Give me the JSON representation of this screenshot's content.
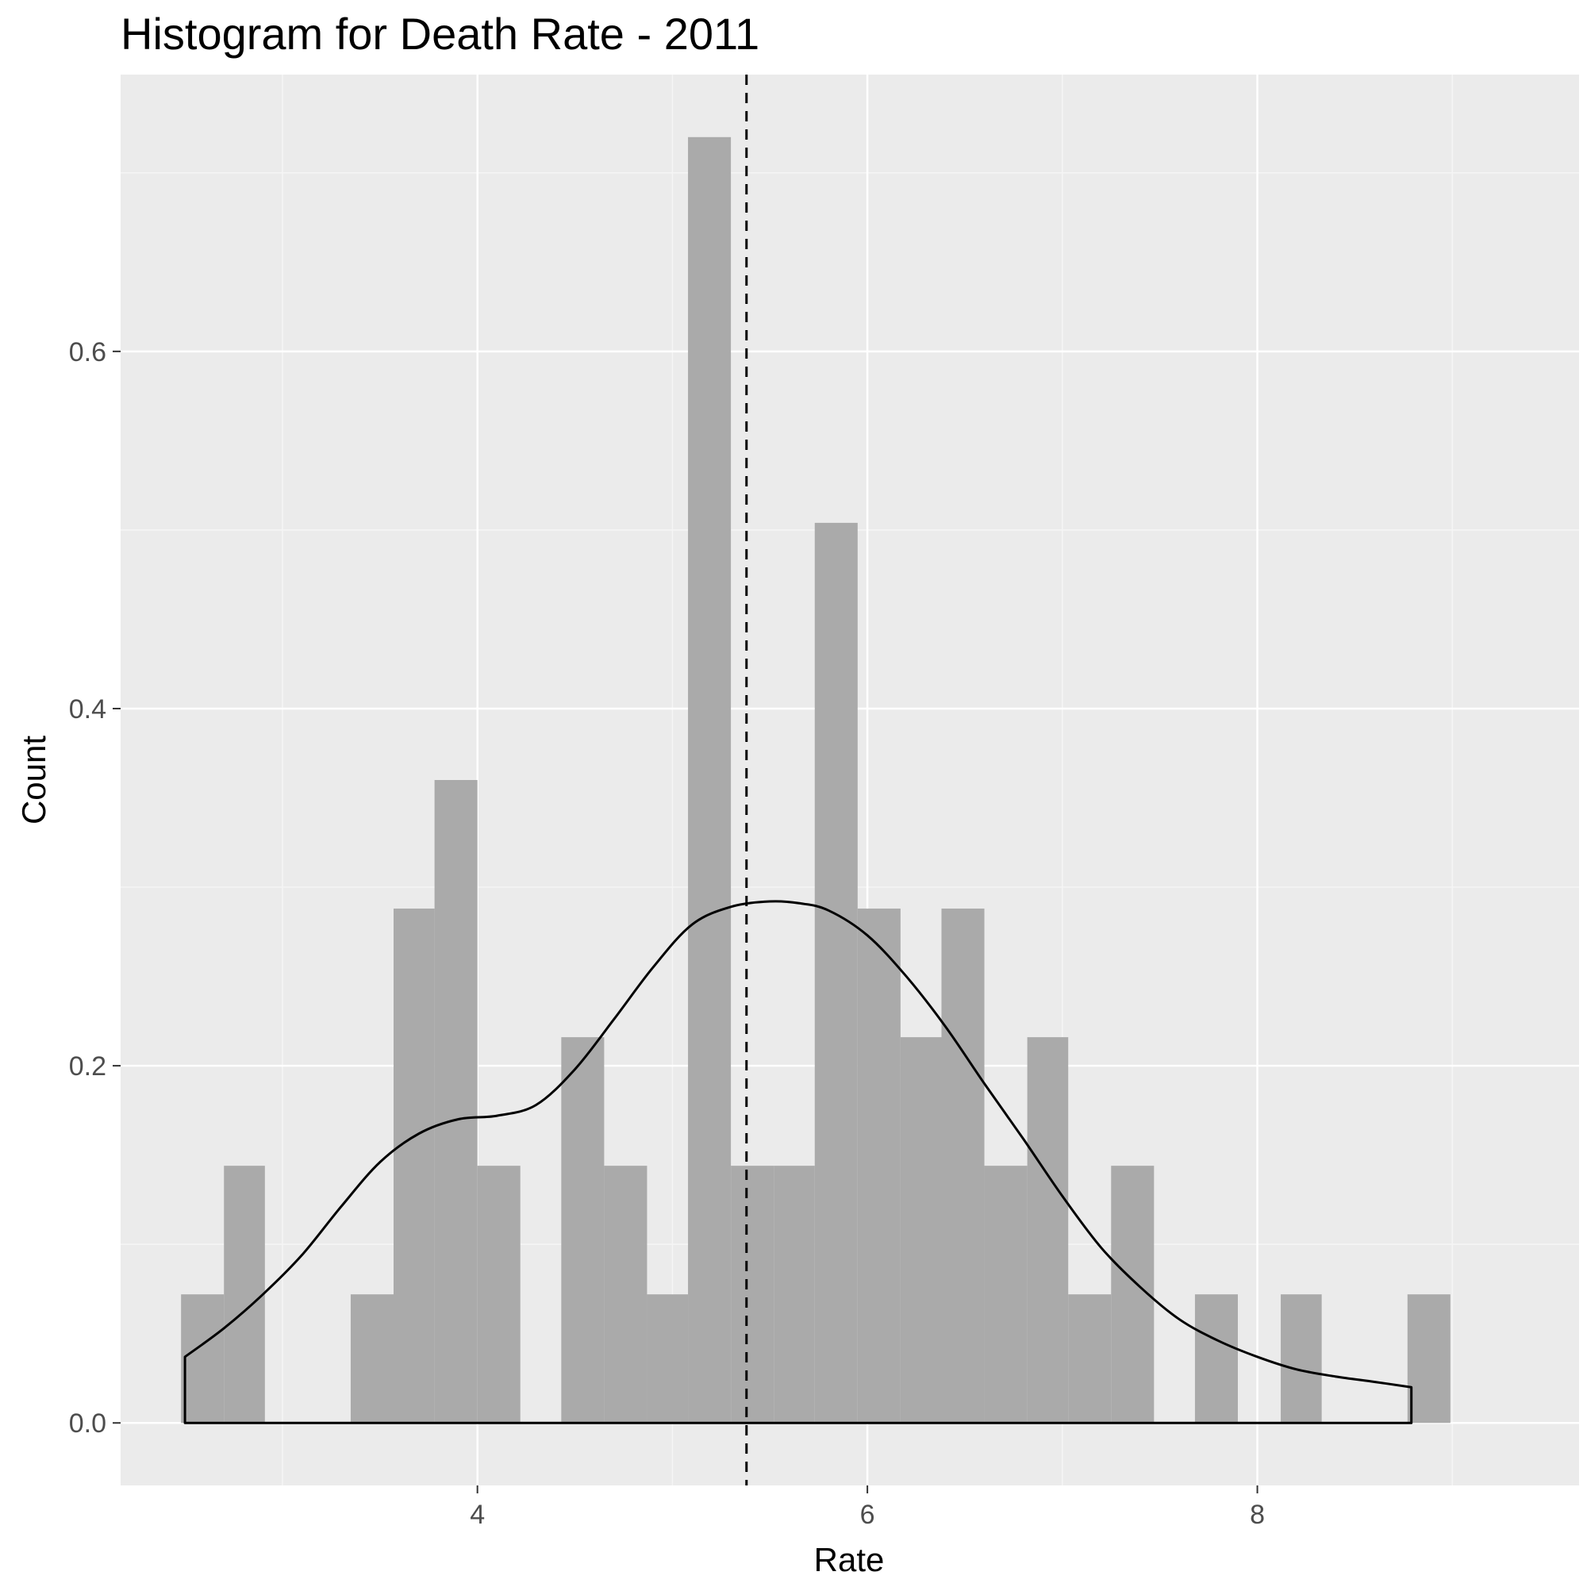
{
  "chart_data": {
    "type": "histogram",
    "title": "Histogram for Death Rate - 2011",
    "xlabel": "Rate",
    "ylabel": "Count",
    "xlim": [
      2.17,
      9.65
    ],
    "ylim": [
      -0.035,
      0.755
    ],
    "x_ticks": [
      4,
      6,
      8
    ],
    "y_ticks": [
      0.0,
      0.2,
      0.4,
      0.6
    ],
    "x_minor_ticks": [
      3,
      5,
      7,
      9
    ],
    "y_minor_ticks": [
      0.1,
      0.3,
      0.5,
      0.7
    ],
    "grid": true,
    "colors": {
      "panel_background": "#ebebeb",
      "grid_major": "#ffffff",
      "grid_minor": "#f5f5f5",
      "bar_fill": "#aaaaaa",
      "density_line": "#000000",
      "mean_line": "#000000"
    },
    "bins": [
      {
        "x0": 2.48,
        "x1": 2.7,
        "value": 0.072
      },
      {
        "x0": 2.7,
        "x1": 2.91,
        "value": 0.144
      },
      {
        "x0": 3.35,
        "x1": 3.57,
        "value": 0.072
      },
      {
        "x0": 3.57,
        "x1": 3.78,
        "value": 0.288
      },
      {
        "x0": 3.78,
        "x1": 4.0,
        "value": 0.36
      },
      {
        "x0": 4.0,
        "x1": 4.22,
        "value": 0.144
      },
      {
        "x0": 4.43,
        "x1": 4.65,
        "value": 0.216
      },
      {
        "x0": 4.65,
        "x1": 4.87,
        "value": 0.144
      },
      {
        "x0": 4.87,
        "x1": 5.08,
        "value": 0.072
      },
      {
        "x0": 5.08,
        "x1": 5.3,
        "value": 0.72
      },
      {
        "x0": 5.3,
        "x1": 5.52,
        "value": 0.144
      },
      {
        "x0": 5.52,
        "x1": 5.73,
        "value": 0.144
      },
      {
        "x0": 5.73,
        "x1": 5.95,
        "value": 0.504
      },
      {
        "x0": 5.95,
        "x1": 6.17,
        "value": 0.288
      },
      {
        "x0": 6.17,
        "x1": 6.38,
        "value": 0.216
      },
      {
        "x0": 6.38,
        "x1": 6.6,
        "value": 0.288
      },
      {
        "x0": 6.6,
        "x1": 6.82,
        "value": 0.144
      },
      {
        "x0": 6.82,
        "x1": 7.03,
        "value": 0.216
      },
      {
        "x0": 7.03,
        "x1": 7.25,
        "value": 0.072
      },
      {
        "x0": 7.25,
        "x1": 7.47,
        "value": 0.144
      },
      {
        "x0": 7.68,
        "x1": 7.9,
        "value": 0.072
      },
      {
        "x0": 8.12,
        "x1": 8.33,
        "value": 0.072
      },
      {
        "x0": 8.77,
        "x1": 8.99,
        "value": 0.072
      }
    ],
    "density": {
      "x": [
        2.5,
        2.7,
        2.9,
        3.1,
        3.3,
        3.5,
        3.7,
        3.9,
        4.1,
        4.3,
        4.5,
        4.7,
        4.9,
        5.1,
        5.3,
        5.5,
        5.65,
        5.8,
        6.0,
        6.2,
        6.4,
        6.6,
        6.8,
        7.0,
        7.2,
        7.4,
        7.6,
        7.8,
        8.0,
        8.2,
        8.4,
        8.6,
        8.79
      ],
      "y": [
        0.037,
        0.053,
        0.072,
        0.094,
        0.121,
        0.146,
        0.162,
        0.17,
        0.172,
        0.178,
        0.198,
        0.226,
        0.255,
        0.279,
        0.289,
        0.292,
        0.291,
        0.287,
        0.273,
        0.25,
        0.222,
        0.19,
        0.159,
        0.127,
        0.098,
        0.076,
        0.058,
        0.046,
        0.037,
        0.03,
        0.026,
        0.023,
        0.02
      ]
    },
    "mean_line_x": 5.38
  }
}
